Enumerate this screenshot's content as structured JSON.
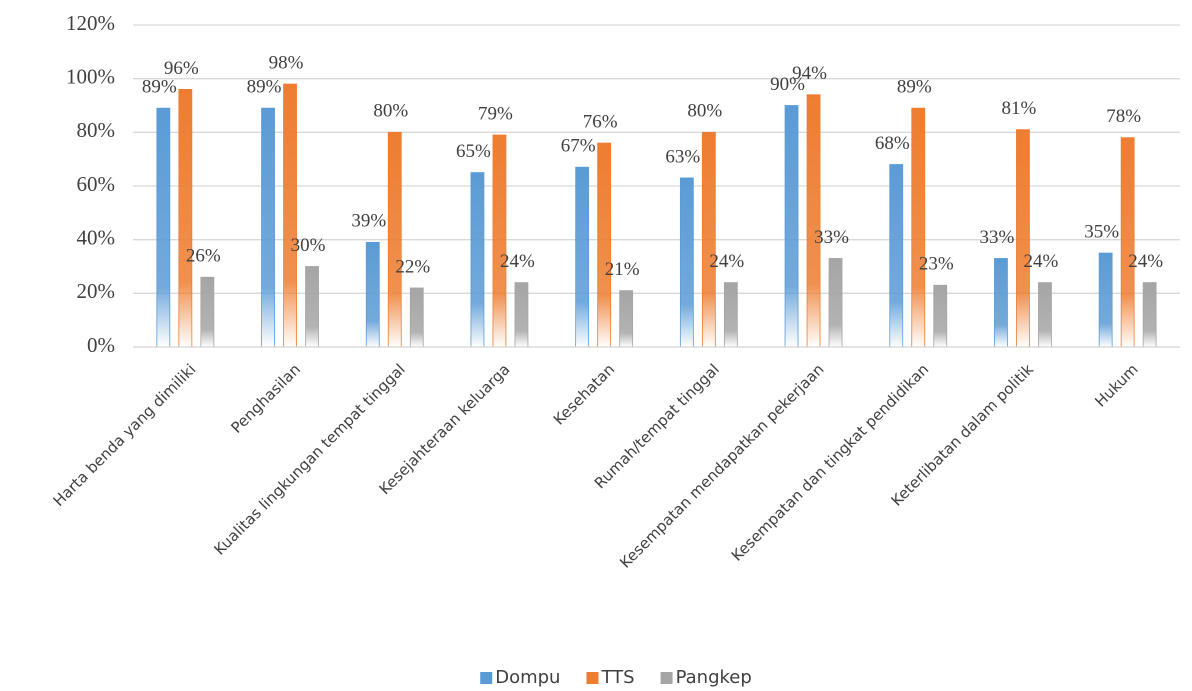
{
  "chart_data": {
    "type": "bar",
    "categories": [
      "Harta benda yang dimiliki",
      "Penghasilan",
      "Kualitas lingkungan tempat tinggal",
      "Kesejahteraan keluarga",
      "Kesehatan",
      "Rumah/tempat  tinggal",
      "Kesempatan mendapatkan pekerjaan",
      "Kesempatan dan tingkat pendidikan",
      "Keterlibatan dalam politik",
      "Hukum"
    ],
    "series": [
      {
        "name": "Dompu",
        "color": "#5b9bd5",
        "values": [
          89,
          89,
          39,
          65,
          67,
          63,
          90,
          68,
          33,
          35
        ],
        "value_labels": [
          "89%",
          "89%",
          "39%",
          "65%",
          "67%",
          "63%",
          "90%",
          "68%",
          "33%",
          "35%"
        ]
      },
      {
        "name": "TTS",
        "color": "#ed7d31",
        "values": [
          96,
          98,
          80,
          79,
          76,
          80,
          94,
          89,
          81,
          78
        ],
        "value_labels": [
          "96%",
          "98%",
          "80%",
          "79%",
          "76%",
          "80%",
          "94%",
          "89%",
          "81%",
          "78%"
        ]
      },
      {
        "name": "Pangkep",
        "color": "#a5a5a5",
        "values": [
          26,
          30,
          22,
          24,
          21,
          24,
          33,
          23,
          24,
          24
        ],
        "value_labels": [
          "26%",
          "30%",
          "22%",
          "24%",
          "21%",
          "24%",
          "33%",
          "23%",
          "24%",
          "24%"
        ]
      }
    ],
    "ylim": [
      0,
      120
    ],
    "yticks": [
      {
        "value": 0,
        "label": "0%"
      },
      {
        "value": 20,
        "label": "20%"
      },
      {
        "value": 40,
        "label": "40%"
      },
      {
        "value": 60,
        "label": "60%"
      },
      {
        "value": 80,
        "label": "80%"
      },
      {
        "value": 100,
        "label": "100%"
      },
      {
        "value": 120,
        "label": "120%"
      }
    ],
    "grid": true,
    "legend": "bottom"
  }
}
